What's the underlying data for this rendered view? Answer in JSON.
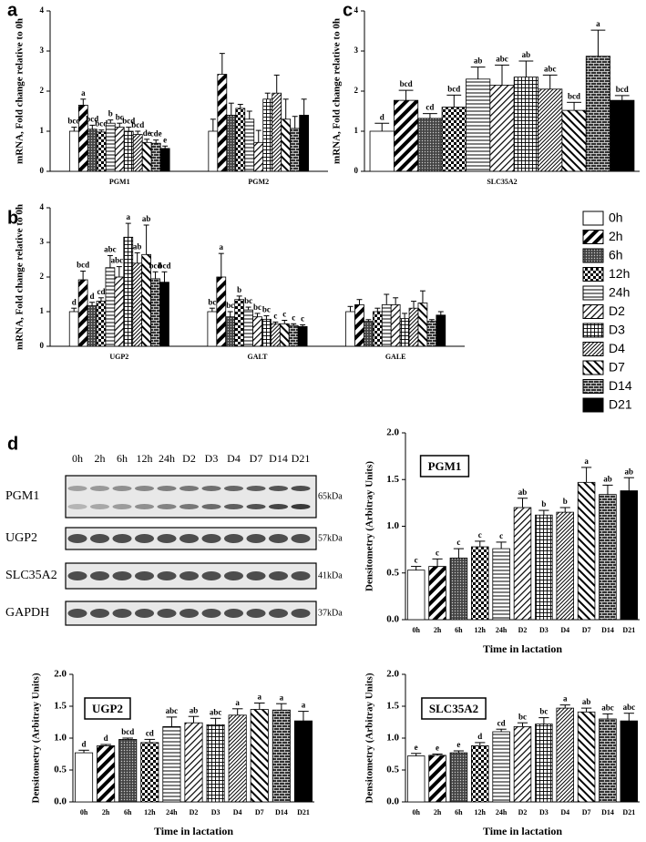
{
  "chart_data": [
    {
      "type": "bar",
      "panel": "a",
      "ylabel": "mRNA, Fold change relative to 0h",
      "categories": [
        "PGM1",
        "PGM2"
      ],
      "ylim": [
        0,
        4
      ],
      "yticks": [
        0,
        1,
        2,
        3,
        4
      ],
      "series": [
        {
          "pattern": "p-white",
          "values": [
            1.0,
            1.0
          ],
          "errors": [
            0.1,
            0.3
          ],
          "letters": [
            "bcd",
            null
          ]
        },
        {
          "pattern": "p-diag-wide",
          "values": [
            1.65,
            2.42
          ],
          "errors": [
            0.15,
            0.52
          ],
          "letters": [
            "a",
            null
          ]
        },
        {
          "pattern": "p-dots",
          "values": [
            1.05,
            1.4
          ],
          "errors": [
            0.1,
            0.3
          ],
          "letters": [
            "bcd",
            null
          ]
        },
        {
          "pattern": "p-checker",
          "values": [
            0.98,
            1.57
          ],
          "errors": [
            0.05,
            0.1
          ],
          "letters": [
            "bcd",
            null
          ]
        },
        {
          "pattern": "p-hline",
          "values": [
            1.2,
            1.3
          ],
          "errors": [
            0.08,
            0.2
          ],
          "letters": [
            "b",
            null
          ]
        },
        {
          "pattern": "p-diag",
          "values": [
            1.1,
            0.72
          ],
          "errors": [
            0.1,
            0.3
          ],
          "letters": [
            "bc",
            null
          ]
        },
        {
          "pattern": "p-grid",
          "values": [
            1.0,
            1.8
          ],
          "errors": [
            0.1,
            0.15
          ],
          "letters": [
            "bcd",
            null
          ]
        },
        {
          "pattern": "p-diag-fine",
          "values": [
            0.92,
            1.95
          ],
          "errors": [
            0.08,
            0.45
          ],
          "letters": [
            "bcd",
            null
          ]
        },
        {
          "pattern": "p-diag-rev",
          "values": [
            0.72,
            1.3
          ],
          "errors": [
            0.08,
            0.5
          ],
          "letters": [
            "de",
            null
          ]
        },
        {
          "pattern": "p-brick",
          "values": [
            0.7,
            1.07
          ],
          "errors": [
            0.08,
            0.3
          ],
          "letters": [
            "cde",
            null
          ]
        },
        {
          "pattern": "p-black",
          "values": [
            0.57,
            1.4
          ],
          "errors": [
            0.06,
            0.4
          ],
          "letters": [
            "e",
            null
          ]
        }
      ]
    },
    {
      "type": "bar",
      "panel": "b",
      "ylabel": "mRNA, Fold change relative to 0h",
      "categories": [
        "UGP2",
        "GALT",
        "GALE"
      ],
      "ylim": [
        0,
        4
      ],
      "yticks": [
        0,
        1,
        2,
        3,
        4
      ],
      "legend": "right",
      "series": [
        {
          "name": "0h",
          "pattern": "p-white",
          "values": [
            1.0,
            1.0,
            1.0
          ],
          "errors": [
            0.1,
            0.1,
            0.15
          ],
          "letters": [
            "d",
            "bc",
            null
          ]
        },
        {
          "name": "2h",
          "pattern": "p-diag-wide",
          "values": [
            1.92,
            2.0,
            1.2
          ],
          "errors": [
            0.25,
            0.68,
            0.15
          ],
          "letters": [
            "bcd",
            "a",
            null
          ]
        },
        {
          "name": "6h",
          "pattern": "p-dots",
          "values": [
            1.17,
            0.85,
            0.72
          ],
          "errors": [
            0.1,
            0.15,
            0.05
          ],
          "letters": [
            "d",
            "bc",
            null
          ]
        },
        {
          "name": "12h",
          "pattern": "p-checker",
          "values": [
            1.3,
            1.35,
            1.0
          ],
          "errors": [
            0.1,
            0.1,
            0.1
          ],
          "letters": [
            "cd",
            "b",
            null
          ]
        },
        {
          "name": "24h",
          "pattern": "p-hline",
          "values": [
            2.27,
            1.05,
            1.2
          ],
          "errors": [
            0.35,
            0.08,
            0.3
          ],
          "letters": [
            "abc",
            "bc",
            null
          ]
        },
        {
          "name": "D2",
          "pattern": "p-diag",
          "values": [
            2.0,
            0.85,
            1.2
          ],
          "errors": [
            0.3,
            0.1,
            0.2
          ],
          "letters": [
            "abcd",
            "bc",
            null
          ]
        },
        {
          "name": "D3",
          "pattern": "p-grid",
          "values": [
            3.15,
            0.78,
            0.8
          ],
          "errors": [
            0.4,
            0.1,
            0.15
          ],
          "letters": [
            "a",
            "bc",
            null
          ]
        },
        {
          "name": "D4",
          "pattern": "p-diag-fine",
          "values": [
            2.4,
            0.65,
            1.1
          ],
          "errors": [
            0.3,
            0.05,
            0.2
          ],
          "letters": [
            "ab",
            "c",
            null
          ]
        },
        {
          "name": "D7",
          "pattern": "p-diag-rev",
          "values": [
            2.65,
            0.65,
            1.25
          ],
          "errors": [
            0.85,
            0.1,
            0.35
          ],
          "letters": [
            "ab",
            "c",
            null
          ]
        },
        {
          "name": "D14",
          "pattern": "p-brick",
          "values": [
            1.95,
            0.6,
            0.72
          ],
          "errors": [
            0.2,
            0.05,
            0.05
          ],
          "letters": [
            "bcd",
            "c",
            null
          ]
        },
        {
          "name": "D21",
          "pattern": "p-black",
          "values": [
            1.85,
            0.57,
            0.9
          ],
          "errors": [
            0.3,
            0.05,
            0.1
          ],
          "letters": [
            "bcd",
            "c",
            null
          ]
        }
      ]
    },
    {
      "type": "bar",
      "panel": "c",
      "ylabel": "mRNA, Fold change relative to 0h",
      "categories": [
        "SLC35A2"
      ],
      "ylim": [
        0,
        4
      ],
      "yticks": [
        0,
        1,
        2,
        3,
        4
      ],
      "series": [
        {
          "pattern": "p-white",
          "values": [
            1.0
          ],
          "errors": [
            0.2
          ],
          "letters": [
            "d"
          ]
        },
        {
          "pattern": "p-diag-wide",
          "values": [
            1.77
          ],
          "errors": [
            0.25
          ],
          "letters": [
            "bcd"
          ]
        },
        {
          "pattern": "p-dots",
          "values": [
            1.32
          ],
          "errors": [
            0.12
          ],
          "letters": [
            "cd"
          ]
        },
        {
          "pattern": "p-checker",
          "values": [
            1.6
          ],
          "errors": [
            0.3
          ],
          "letters": [
            "bcd"
          ]
        },
        {
          "pattern": "p-hline",
          "values": [
            2.3
          ],
          "errors": [
            0.3
          ],
          "letters": [
            "ab"
          ]
        },
        {
          "pattern": "p-diag",
          "values": [
            2.15
          ],
          "errors": [
            0.5
          ],
          "letters": [
            "abc"
          ]
        },
        {
          "pattern": "p-grid",
          "values": [
            2.35
          ],
          "errors": [
            0.4
          ],
          "letters": [
            "ab"
          ]
        },
        {
          "pattern": "p-diag-fine",
          "values": [
            2.05
          ],
          "errors": [
            0.35
          ],
          "letters": [
            "abc"
          ]
        },
        {
          "pattern": "p-diag-rev",
          "values": [
            1.52
          ],
          "errors": [
            0.2
          ],
          "letters": [
            "bcd"
          ]
        },
        {
          "pattern": "p-brick",
          "values": [
            2.87
          ],
          "errors": [
            0.65
          ],
          "letters": [
            "a"
          ]
        },
        {
          "pattern": "p-black",
          "values": [
            1.77
          ],
          "errors": [
            0.12
          ],
          "letters": [
            "bcd"
          ]
        }
      ]
    },
    {
      "type": "blot",
      "panel": "d",
      "lanes": [
        "0h",
        "2h",
        "6h",
        "12h",
        "24h",
        "D2",
        "D3",
        "D4",
        "D7",
        "D14",
        "D21"
      ],
      "rows": [
        {
          "name": "PGM1",
          "size": "65kDa"
        },
        {
          "name": "UGP2",
          "size": "57kDa"
        },
        {
          "name": "SLC35A2",
          "size": "41kDa"
        },
        {
          "name": "GAPDH",
          "size": "37kDa"
        }
      ]
    },
    {
      "type": "bar",
      "title": "PGM1",
      "ylabel": "Densitometry (Arbitray Units)",
      "xlabel": "Time in lactation",
      "fill_by": "category",
      "categories": [
        "0h",
        "2h",
        "6h",
        "12h",
        "24h",
        "D2",
        "D3",
        "D4",
        "D7",
        "D14",
        "D21"
      ],
      "ylim": [
        0,
        2
      ],
      "yticks": [
        {
          "value": 0,
          "label": "0.0"
        },
        {
          "value": 0.5,
          "label": "0.5"
        },
        {
          "value": 1,
          "label": "1.0"
        },
        {
          "value": 1.5,
          "label": "1.5"
        },
        {
          "value": 2,
          "label": "2.0"
        }
      ],
      "series": [
        {
          "values": [
            0.53,
            0.57,
            0.66,
            0.78,
            0.76,
            1.2,
            1.12,
            1.15,
            1.47,
            1.34,
            1.38
          ],
          "errors": [
            0.04,
            0.08,
            0.1,
            0.06,
            0.07,
            0.1,
            0.05,
            0.05,
            0.16,
            0.1,
            0.14
          ],
          "letters": [
            "c",
            "c",
            "c",
            "c",
            "c",
            "ab",
            "b",
            "b",
            "a",
            "ab",
            "ab"
          ]
        }
      ]
    },
    {
      "type": "bar",
      "title": "UGP2",
      "ylabel": "Densitometry (Arbitray Units)",
      "xlabel": "Time in lactation",
      "fill_by": "category",
      "categories": [
        "0h",
        "2h",
        "6h",
        "12h",
        "24h",
        "D2",
        "D3",
        "D4",
        "D7",
        "D14",
        "D21"
      ],
      "ylim": [
        0,
        2
      ],
      "yticks": [
        {
          "value": 0,
          "label": "0.0"
        },
        {
          "value": 0.5,
          "label": "0.5"
        },
        {
          "value": 1,
          "label": "1.0"
        },
        {
          "value": 1.5,
          "label": "1.5"
        },
        {
          "value": 2,
          "label": "2.0"
        }
      ],
      "series": [
        {
          "values": [
            0.77,
            0.88,
            0.98,
            0.93,
            1.18,
            1.24,
            1.21,
            1.36,
            1.45,
            1.44,
            1.27
          ],
          "errors": [
            0.04,
            0.02,
            0.02,
            0.05,
            0.15,
            0.1,
            0.1,
            0.1,
            0.1,
            0.1,
            0.15
          ],
          "letters": [
            "d",
            "d",
            "bcd",
            "cd",
            "abc",
            "ab",
            "abc",
            "a",
            "a",
            "a",
            "a"
          ]
        }
      ]
    },
    {
      "type": "bar",
      "title": "SLC35A2",
      "ylabel": "Densitometry (Arbitray Units)",
      "xlabel": "Time in lactation",
      "fill_by": "category",
      "categories": [
        "0h",
        "2h",
        "6h",
        "12h",
        "24h",
        "D2",
        "D3",
        "D4",
        "D7",
        "D14",
        "D21"
      ],
      "ylim": [
        0,
        2
      ],
      "yticks": [
        {
          "value": 0,
          "label": "0.0"
        },
        {
          "value": 0.5,
          "label": "0.5"
        },
        {
          "value": 1,
          "label": "1.0"
        },
        {
          "value": 1.5,
          "label": "1.5"
        },
        {
          "value": 2,
          "label": "2.0"
        }
      ],
      "series": [
        {
          "values": [
            0.72,
            0.73,
            0.77,
            0.88,
            1.1,
            1.18,
            1.22,
            1.47,
            1.41,
            1.3,
            1.27
          ],
          "errors": [
            0.04,
            0.02,
            0.03,
            0.05,
            0.04,
            0.06,
            0.1,
            0.05,
            0.06,
            0.08,
            0.12
          ],
          "letters": [
            "e",
            "e",
            "e",
            "d",
            "cd",
            "bc",
            "bc",
            "a",
            "ab",
            "abc",
            "abc"
          ]
        }
      ]
    }
  ]
}
